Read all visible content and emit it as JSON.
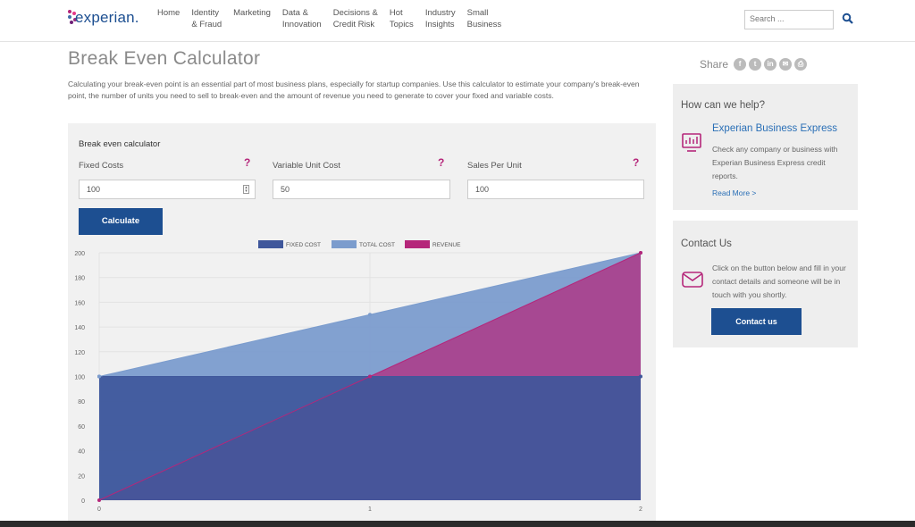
{
  "header": {
    "logo_text": "experian.",
    "nav": [
      {
        "label": "Home"
      },
      {
        "label": "Identity\n& Fraud"
      },
      {
        "label": "Marketing"
      },
      {
        "label": "Data &\nInnovation"
      },
      {
        "label": "Decisions &\nCredit Risk"
      },
      {
        "label": "Hot\nTopics"
      },
      {
        "label": "Industry\nInsights"
      },
      {
        "label": "Small\nBusiness"
      }
    ],
    "search_placeholder": "Search ...",
    "search_icon": "magnifier-icon",
    "brand_color": "#1d4f91"
  },
  "main": {
    "title": "Break Even Calculator",
    "intro": "Calculating your break-even point is an essential part of most business plans, especially for startup companies. Use this calculator to estimate your company's break-even point, the number of units you need to sell to break-even and the amount of revenue you need to generate to cover your fixed and variable costs.",
    "calculator": {
      "heading": "Break even calculator",
      "fields": [
        {
          "label": "Fixed Costs",
          "value": "100",
          "help": "?"
        },
        {
          "label": "Variable Unit Cost",
          "value": "50",
          "help": "?"
        },
        {
          "label": "Sales Per Unit",
          "value": "100",
          "help": "?"
        }
      ],
      "calculate_label": "Calculate"
    }
  },
  "chart_data": {
    "type": "area",
    "x": [
      0,
      1,
      2
    ],
    "series": [
      {
        "name": "FIXED COST",
        "values": [
          100,
          100,
          100
        ],
        "color": "#3f579b"
      },
      {
        "name": "TOTAL COST",
        "values": [
          100,
          150,
          200
        ],
        "color": "#7b9ccd"
      },
      {
        "name": "REVENUE",
        "values": [
          0,
          100,
          200
        ],
        "color": "#b5267a"
      }
    ],
    "ylim": [
      0,
      200
    ],
    "yticks": [
      0,
      20,
      40,
      60,
      80,
      100,
      120,
      140,
      160,
      180,
      200
    ],
    "xticks": [
      0,
      1,
      2
    ],
    "legend": "top-center",
    "grid": true
  },
  "sidebar": {
    "share_label": "Share",
    "share_icons": [
      "facebook-icon",
      "twitter-icon",
      "linkedin-icon",
      "email-icon",
      "print-icon"
    ],
    "help": {
      "title": "How can we help?",
      "subtitle": "Experian Business Express",
      "text": "Check any company or business with Experian Business Express credit reports.",
      "link": "Read More >"
    },
    "contact": {
      "title": "Contact Us",
      "text": "Click on the button below and fill in your contact details and someone will be in touch with you shortly.",
      "button": "Contact us"
    }
  }
}
